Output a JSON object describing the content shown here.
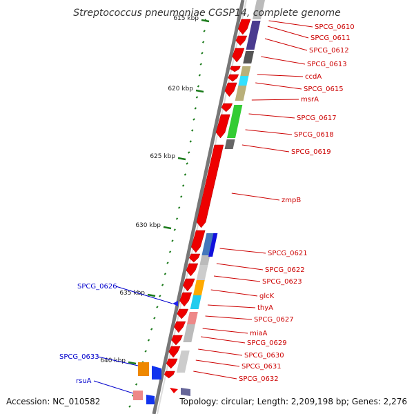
{
  "title": "Streptococcus pneumoniae CGSP14, complete genome",
  "accession": "Accession: NC_010582",
  "topology": "Topology: circular; Length: 2,209,198 bp; Genes: 2,276",
  "colors": {
    "forward_label": "#cc0000",
    "reverse_label": "#0000cc",
    "tick": "#1a7a1a",
    "backbone": "#888888"
  },
  "ticks": [
    "615 kbp",
    "620 kbp",
    "625 kbp",
    "630 kbp",
    "635 kbp",
    "640 kbp"
  ],
  "forward_genes": [
    "SPCG_0610",
    "SPCG_0611",
    "SPCG_0612",
    "SPCG_0613",
    "ccdA",
    "SPCG_0615",
    "msrA",
    "SPCG_0617",
    "SPCG_0618",
    "SPCG_0619",
    "zmpB",
    "SPCG_0621",
    "SPCG_0622",
    "SPCG_0623",
    "glcK",
    "thyA",
    "SPCG_0627",
    "miaA",
    "SPCG_0629",
    "SPCG_0630",
    "SPCG_0631",
    "SPCG_0632"
  ],
  "reverse_genes": [
    "SPCG_0626",
    "SPCG_0633",
    "rsuA"
  ]
}
